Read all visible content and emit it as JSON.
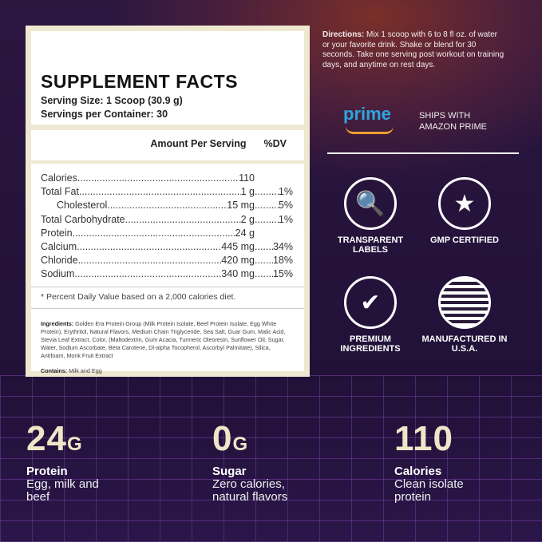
{
  "facts": {
    "title": "SUPPLEMENT FACTS",
    "serving_size": "Serving Size: 1 Scoop (30.9 g)",
    "servings": "Servings per Container: 30",
    "amount_header": "Amount Per Serving",
    "dv_header": "%DV",
    "rows": [
      {
        "name": "Calories",
        "amount": "110",
        "dv": ""
      },
      {
        "name": "Total Fat",
        "amount": "1 g",
        "dv": "1%"
      },
      {
        "name": "Cholesterol",
        "amount": "15 mg",
        "dv": "5%"
      },
      {
        "name": "Total Carbohydrate",
        "amount": "2 g",
        "dv": "1%"
      },
      {
        "name": "Protein",
        "amount": "24 g",
        "dv": ""
      },
      {
        "name": "Calcium",
        "amount": "445 mg",
        "dv": "34%"
      },
      {
        "name": "Chloride",
        "amount": "420 mg",
        "dv": "18%"
      },
      {
        "name": "Sodium",
        "amount": "340 mg",
        "dv": "15%"
      }
    ],
    "note": "* Percent Daily Value based on a 2,000 calories diet.",
    "ingredients_label": "Ingredients:",
    "ingredients": "Golden Era Protein Group (Milk Protein Isolate, Beef Protein Isolate, Egg White Protein), Erythritol, Natural Flavors, Medium Chain Triglyceride, Sea Salt, Guar Gum, Malic Acid, Stevia Leaf Extract, Color, (Maltodextrin, Gum Acacia, Turmeric Oleoresin, Sunflower Oil, Sugar, Water, Sodium Ascorbate, Beta Carotene, Dl-alpha Tocopherol, Ascorbyl Palmitate), Silica, Antifoam, Monk Fruit Extract",
    "contains_label": "Contains:",
    "contains": "Milk and Egg"
  },
  "directions": {
    "label": "Directions:",
    "text": "Mix 1 scoop with 6 to 8 fl oz. of water or your favorite drink. Shake or blend for 30 seconds. Take one serving post workout on training days, and anytime on rest days."
  },
  "prime": {
    "logo": "prime",
    "text": "SHIPS WITH AMAZON PRIME"
  },
  "badges": [
    {
      "icon": "magnifier-jar-icon",
      "label": "TRANSPARENT LABELS"
    },
    {
      "icon": "award-ribbon-icon",
      "label": "GMP CERTIFIED"
    },
    {
      "icon": "checkmark-icon",
      "label": "PREMIUM INGREDIENTS"
    },
    {
      "icon": "us-flag-icon",
      "label": "MANUFACTURED IN U.S.A."
    }
  ],
  "stats": [
    {
      "value": "24",
      "unit": "G",
      "title": "Protein",
      "desc": "Egg, milk and beef"
    },
    {
      "value": "0",
      "unit": "G",
      "title": "Sugar",
      "desc": "Zero calories, natural flavors"
    },
    {
      "value": "110",
      "unit": "",
      "title": "Calories",
      "desc": "Clean isolate protein"
    }
  ]
}
